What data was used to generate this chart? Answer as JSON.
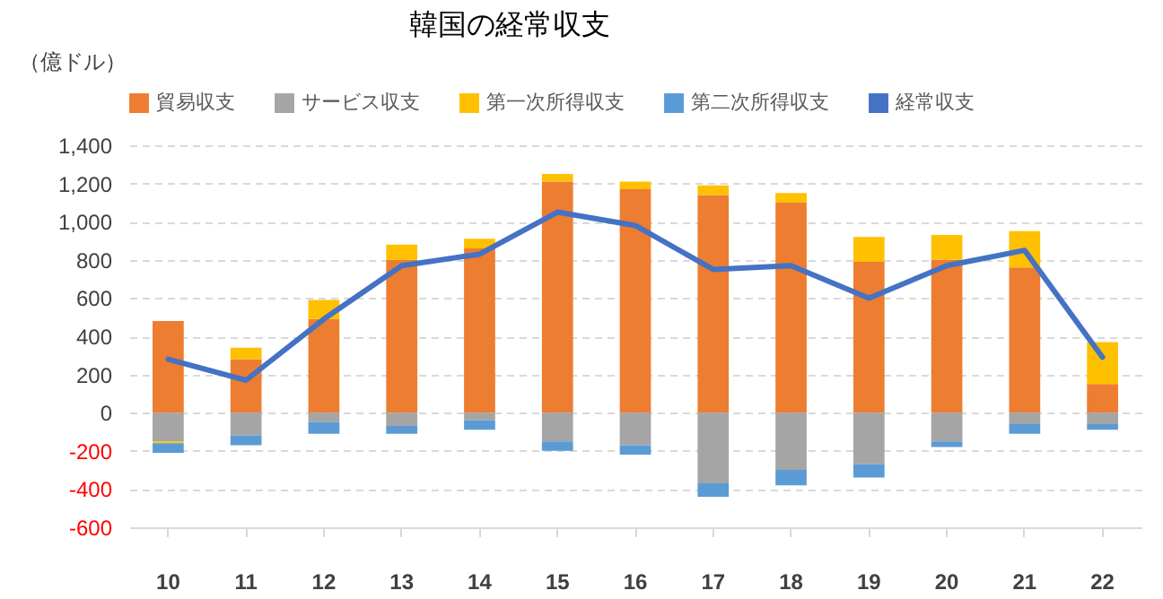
{
  "chart_data": {
    "type": "bar",
    "title": "韓国の経常収支",
    "ylabel": "（億ドル）",
    "stacked": true,
    "legend": "top",
    "grid": "y",
    "categories": [
      "10",
      "11",
      "12",
      "13",
      "14",
      "15",
      "16",
      "17",
      "18",
      "19",
      "20",
      "21",
      "22"
    ],
    "ylim": [
      -600,
      1400
    ],
    "yticks": [
      -600,
      -400,
      -200,
      0,
      200,
      400,
      600,
      800,
      {
        "value": 1000,
        "label": "1,000"
      },
      {
        "value": 1200,
        "label": "1,200"
      },
      {
        "value": 1400,
        "label": "1,400"
      }
    ],
    "series": [
      {
        "name": "貿易収支",
        "color": "#ed7d31",
        "values": [
          480,
          280,
          490,
          800,
          860,
          1210,
          1170,
          1140,
          1100,
          790,
          800,
          760,
          150
        ]
      },
      {
        "name": "サービス収支",
        "color": "#a5a5a5",
        "values": [
          -150,
          -120,
          -50,
          -70,
          -40,
          -150,
          -170,
          -370,
          -300,
          -270,
          -150,
          -60,
          -60
        ]
      },
      {
        "name": "第一次所得収支",
        "color": "#ffc000",
        "values": [
          -10,
          60,
          100,
          80,
          50,
          40,
          40,
          50,
          50,
          130,
          130,
          190,
          220
        ]
      },
      {
        "name": "第二次所得収支",
        "color": "#5b9bd5",
        "values": [
          -50,
          -50,
          -60,
          -40,
          -50,
          -50,
          -50,
          -70,
          -80,
          -70,
          -30,
          -50,
          -30
        ]
      },
      {
        "name": "経常収支",
        "type": "line",
        "color": "#4472c4",
        "values": [
          280,
          170,
          490,
          770,
          830,
          1050,
          980,
          750,
          770,
          600,
          770,
          850,
          290
        ]
      }
    ]
  }
}
